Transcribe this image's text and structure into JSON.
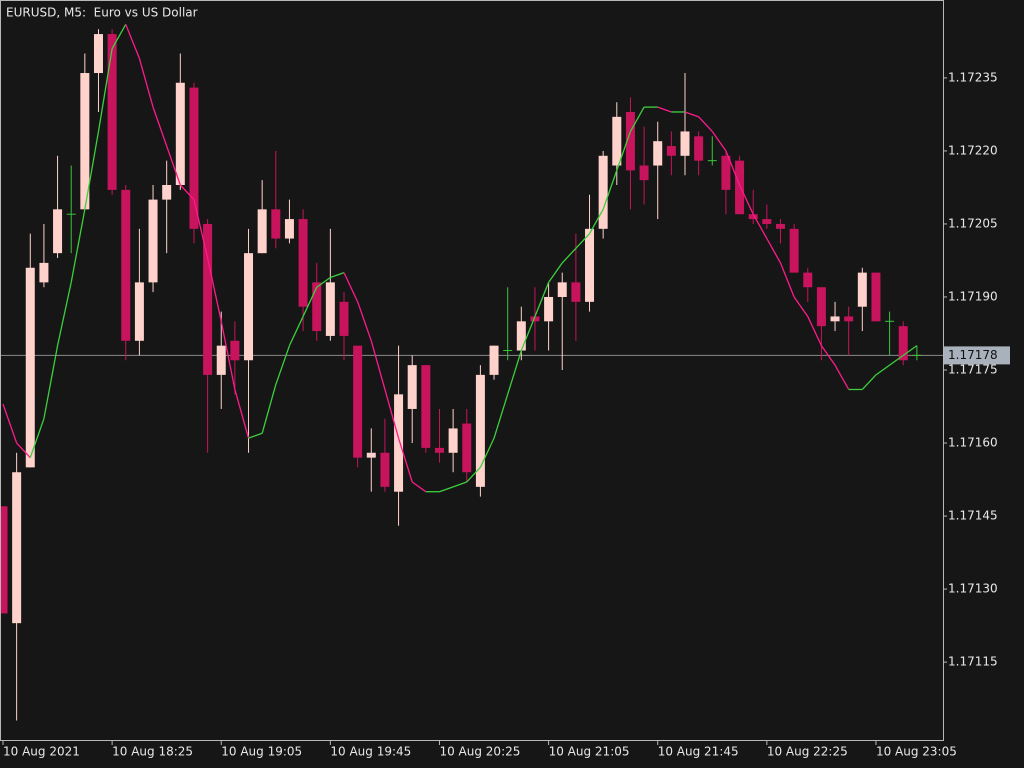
{
  "chart_data": {
    "type": "candlestick",
    "title": "EURUSD, M5:  Euro vs US Dollar",
    "categories": [
      "10 Aug 2021",
      null,
      null,
      null,
      null,
      null,
      null,
      null,
      "10 Aug 18:25",
      null,
      null,
      null,
      null,
      null,
      null,
      null,
      "10 Aug 19:05",
      null,
      null,
      null,
      null,
      null,
      null,
      null,
      "10 Aug 19:45",
      null,
      null,
      null,
      null,
      null,
      null,
      null,
      "10 Aug 20:25",
      null,
      null,
      null,
      null,
      null,
      null,
      null,
      "10 Aug 21:05",
      null,
      null,
      null,
      null,
      null,
      null,
      null,
      "10 Aug 21:45",
      null,
      null,
      null,
      null,
      null,
      null,
      null,
      "10 Aug 22:25",
      null,
      null,
      null,
      null,
      null,
      null,
      null,
      "10 Aug 23:05",
      null,
      null,
      null
    ],
    "open": [
      1.17147,
      1.17123,
      1.17155,
      1.17193,
      1.17199,
      1.17207,
      1.17208,
      1.17236,
      1.17244,
      1.17212,
      1.17181,
      1.17193,
      1.1721,
      1.17213,
      1.17233,
      1.17205,
      1.17174,
      1.17181,
      1.17177,
      1.17199,
      1.17208,
      1.17202,
      1.17206,
      1.17193,
      1.17182,
      1.17189,
      1.1718,
      1.17157,
      1.17158,
      1.1715,
      1.17167,
      1.17176,
      1.17159,
      1.17158,
      1.17164,
      1.17151,
      1.17174,
      1.17179,
      1.17179,
      1.17186,
      1.17185,
      1.1719,
      1.17193,
      1.17189,
      1.17204,
      1.17217,
      1.17228,
      1.17217,
      1.17217,
      1.17221,
      1.17219,
      1.17223,
      1.17218,
      1.17219,
      1.17218,
      1.17207,
      1.17206,
      1.17205,
      1.17204,
      1.17195,
      1.17192,
      1.17185,
      1.17186,
      1.17188,
      1.17195,
      1.17185,
      1.17184,
      1.17178
    ],
    "high": [
      1.17147,
      1.17158,
      1.17203,
      1.17205,
      1.17219,
      1.17217,
      1.1724,
      1.17245,
      1.17245,
      1.17213,
      1.17204,
      1.17213,
      1.17218,
      1.1724,
      1.17234,
      1.17206,
      1.17187,
      1.17185,
      1.17204,
      1.17214,
      1.1722,
      1.1721,
      1.17208,
      1.17197,
      1.17204,
      1.17191,
      1.1718,
      1.17163,
      1.17165,
      1.1718,
      1.17178,
      1.17176,
      1.17167,
      1.17167,
      1.17167,
      1.17176,
      1.1718,
      1.17192,
      1.17188,
      1.17192,
      1.17193,
      1.17195,
      1.17203,
      1.17211,
      1.1722,
      1.1723,
      1.17231,
      1.17225,
      1.17226,
      1.17224,
      1.17236,
      1.17224,
      1.17223,
      1.1722,
      1.17219,
      1.17212,
      1.17209,
      1.17206,
      1.17205,
      1.17196,
      1.17192,
      1.17189,
      1.17188,
      1.17196,
      1.17195,
      1.17187,
      1.17185,
      1.1718
    ],
    "low": [
      1.17125,
      1.17103,
      1.17155,
      1.17192,
      1.17198,
      1.17199,
      1.17208,
      1.17228,
      1.17211,
      1.17177,
      1.17178,
      1.17191,
      1.17199,
      1.17212,
      1.17201,
      1.17158,
      1.17167,
      1.1717,
      1.17158,
      1.17199,
      1.172,
      1.17201,
      1.17183,
      1.17181,
      1.17181,
      1.17177,
      1.17155,
      1.1715,
      1.1715,
      1.17143,
      1.1716,
      1.17158,
      1.17156,
      1.17154,
      1.17152,
      1.17149,
      1.17173,
      1.17177,
      1.17177,
      1.17179,
      1.17179,
      1.17175,
      1.17181,
      1.17187,
      1.17202,
      1.17213,
      1.17208,
      1.17209,
      1.17206,
      1.17215,
      1.17215,
      1.17215,
      1.17217,
      1.17207,
      1.17207,
      1.17205,
      1.17204,
      1.17201,
      1.17195,
      1.17189,
      1.17177,
      1.17183,
      1.17178,
      1.17183,
      1.17185,
      1.17178,
      1.17176,
      1.17177
    ],
    "close": [
      1.17125,
      1.17154,
      1.17196,
      1.17197,
      1.17208,
      1.17207,
      1.17236,
      1.17244,
      1.17212,
      1.17181,
      1.17193,
      1.1721,
      1.17213,
      1.17234,
      1.17204,
      1.17174,
      1.1718,
      1.17177,
      1.17199,
      1.17208,
      1.17202,
      1.17206,
      1.17188,
      1.17183,
      1.17193,
      1.17182,
      1.17157,
      1.17158,
      1.17151,
      1.1717,
      1.17176,
      1.17159,
      1.17158,
      1.17163,
      1.17154,
      1.17174,
      1.1718,
      1.17179,
      1.17185,
      1.17185,
      1.1719,
      1.17193,
      1.17189,
      1.17204,
      1.17219,
      1.17227,
      1.17216,
      1.17214,
      1.17222,
      1.17219,
      1.17224,
      1.17218,
      1.17218,
      1.17212,
      1.17207,
      1.17206,
      1.17205,
      1.17204,
      1.17195,
      1.17192,
      1.17184,
      1.17186,
      1.17185,
      1.17195,
      1.17185,
      1.17185,
      1.17177,
      1.17178
    ],
    "up_color": "#ffd3cc",
    "down_color": "#c8145c",
    "doji_color": "#3cc43c",
    "indicator": {
      "values": [
        1.17168,
        1.1716,
        1.17157,
        1.17165,
        1.1718,
        1.17193,
        1.17208,
        1.17224,
        1.17241,
        1.17246,
        1.17239,
        1.17229,
        1.17221,
        1.17213,
        1.1721,
        1.17198,
        1.17185,
        1.17171,
        1.17161,
        1.17162,
        1.17172,
        1.1718,
        1.17186,
        1.17192,
        1.17194,
        1.17195,
        1.17189,
        1.17181,
        1.17171,
        1.17161,
        1.17152,
        1.1715,
        1.1715,
        1.17151,
        1.17152,
        1.17155,
        1.17161,
        1.1717,
        1.17179,
        1.17186,
        1.17193,
        1.17197,
        1.172,
        1.17203,
        1.17208,
        1.17216,
        1.17224,
        1.17229,
        1.17229,
        1.17228,
        1.17228,
        1.17227,
        1.17224,
        1.1722,
        1.17213,
        1.17207,
        1.17202,
        1.17197,
        1.1719,
        1.17186,
        1.1718,
        1.17176,
        1.17171,
        1.17171,
        1.17174,
        1.17176,
        1.17178,
        1.1718
      ],
      "up_color": "#3cd03c",
      "down_color": "#ff1a8c"
    },
    "last_price": 1.17178,
    "ylim": [
      1.17099,
      1.17251
    ],
    "yticks": [
      1.17235,
      {
        "value": 1.1722,
        "label": "1.17220"
      },
      1.17205,
      {
        "value": 1.1719,
        "label": "1.17190"
      },
      1.17175,
      {
        "value": 1.1716,
        "label": "1.17160"
      },
      1.17145,
      {
        "value": 1.1713,
        "label": "1.17130"
      },
      1.17115
    ]
  }
}
